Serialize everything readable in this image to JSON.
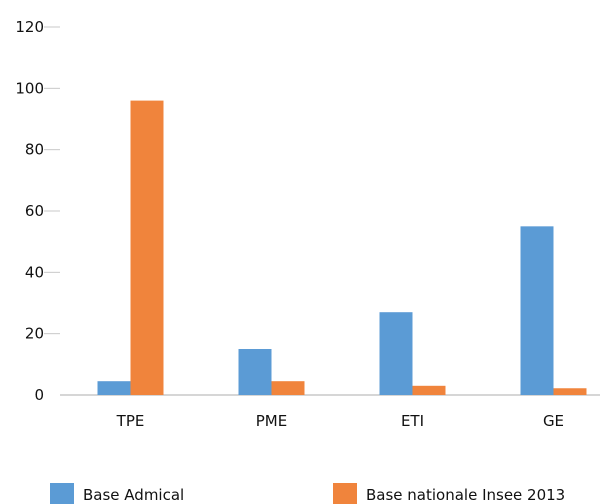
{
  "chart_data": {
    "type": "bar",
    "categories": [
      "TPE",
      "PME",
      "ETI",
      "GE"
    ],
    "series": [
      {
        "name": "Base Admical",
        "values": [
          4.5,
          15,
          27,
          55
        ],
        "color": "#5b9bd5"
      },
      {
        "name": "Base nationale Insee 2013",
        "values": [
          96,
          4.5,
          3,
          2.2
        ],
        "color": "#f0843c"
      }
    ],
    "y_ticks": [
      "0",
      "20",
      "40",
      "60",
      "80",
      "100",
      "120"
    ],
    "ylim": [
      0,
      120
    ],
    "grid": false,
    "legend": "bottom",
    "title": "",
    "xlabel": "",
    "ylabel": ""
  }
}
